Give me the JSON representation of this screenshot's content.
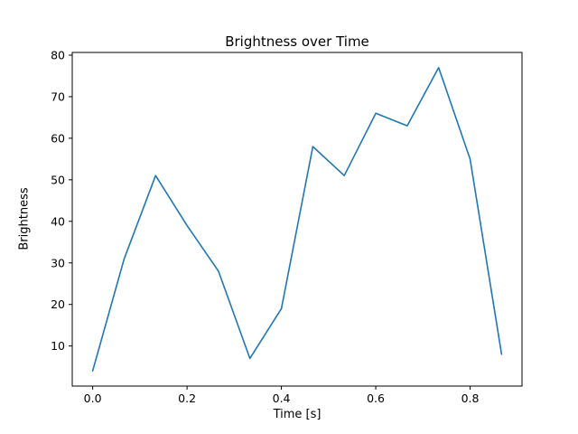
{
  "chart_data": {
    "type": "line",
    "title": "Brightness over Time",
    "xlabel": "Time [s]",
    "ylabel": "Brightness",
    "x": [
      0.0,
      0.0667,
      0.1333,
      0.2,
      0.2667,
      0.3333,
      0.4,
      0.4667,
      0.5333,
      0.6,
      0.6667,
      0.7333,
      0.8,
      0.8667
    ],
    "y": [
      4,
      31,
      51,
      39,
      28,
      7,
      19,
      58,
      51,
      66,
      63,
      77,
      55,
      8
    ],
    "xlim": [
      -0.0433,
      0.91
    ],
    "ylim": [
      0.35,
      80.65
    ],
    "xtick_values": [
      0.0,
      0.2,
      0.4,
      0.6,
      0.8
    ],
    "xtick_labels": [
      "0.0",
      "0.2",
      "0.4",
      "0.6",
      "0.8"
    ],
    "ytick_values": [
      10,
      20,
      30,
      40,
      50,
      60,
      70,
      80
    ],
    "ytick_labels": [
      "10",
      "20",
      "30",
      "40",
      "50",
      "60",
      "70",
      "80"
    ],
    "line_color": "#1f77b4",
    "background": "#ffffff",
    "grid": false,
    "legend": null
  }
}
